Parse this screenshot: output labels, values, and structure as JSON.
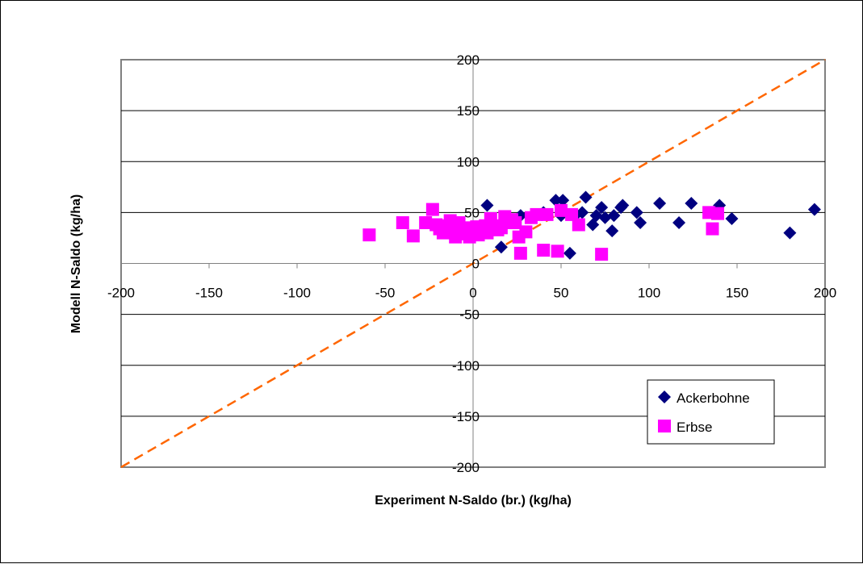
{
  "chart_data": {
    "type": "scatter",
    "xlabel": "Experiment N-Saldo (br.) (kg/ha)",
    "ylabel": "Modell N-Saldo (kg/ha)",
    "xlim": [
      -200,
      200
    ],
    "ylim": [
      -200,
      200
    ],
    "xticks": [
      -200,
      -150,
      -100,
      -50,
      0,
      50,
      100,
      150,
      200
    ],
    "yticks": [
      -200,
      -150,
      -100,
      -50,
      0,
      50,
      100,
      150,
      200
    ],
    "grid": "horizontal major gridlines",
    "legend_position": "lower-right",
    "reference_line": {
      "x": [
        -200,
        200
      ],
      "y": [
        -200,
        200
      ],
      "color": "#FF6600",
      "style": "dashed"
    },
    "series": [
      {
        "name": "Ackerbohne",
        "marker": "diamond",
        "color": "#000080",
        "points": [
          [
            8,
            57
          ],
          [
            16,
            16
          ],
          [
            27,
            47
          ],
          [
            33,
            45
          ],
          [
            40,
            50
          ],
          [
            47,
            62
          ],
          [
            50,
            47
          ],
          [
            51,
            62
          ],
          [
            55,
            10
          ],
          [
            58,
            47
          ],
          [
            62,
            50
          ],
          [
            64,
            65
          ],
          [
            68,
            38
          ],
          [
            70,
            47
          ],
          [
            73,
            55
          ],
          [
            75,
            45
          ],
          [
            79,
            32
          ],
          [
            80,
            47
          ],
          [
            84,
            55
          ],
          [
            85,
            57
          ],
          [
            93,
            50
          ],
          [
            95,
            40
          ],
          [
            106,
            59
          ],
          [
            117,
            40
          ],
          [
            124,
            59
          ],
          [
            140,
            57
          ],
          [
            147,
            44
          ],
          [
            180,
            30
          ],
          [
            194,
            53
          ]
        ]
      },
      {
        "name": "Erbse",
        "marker": "square",
        "color": "#FF00FF",
        "points": [
          [
            -59,
            28
          ],
          [
            -40,
            40
          ],
          [
            -34,
            27
          ],
          [
            -27,
            40
          ],
          [
            -23,
            53
          ],
          [
            -21,
            38
          ],
          [
            -19,
            34
          ],
          [
            -17,
            30
          ],
          [
            -15,
            37
          ],
          [
            -13,
            42
          ],
          [
            -12,
            33
          ],
          [
            -10,
            26
          ],
          [
            -8,
            40
          ],
          [
            -6,
            29
          ],
          [
            -4,
            35
          ],
          [
            -2,
            26
          ],
          [
            0,
            31
          ],
          [
            2,
            36
          ],
          [
            3,
            28
          ],
          [
            5,
            33
          ],
          [
            7,
            37
          ],
          [
            8,
            30
          ],
          [
            10,
            44
          ],
          [
            12,
            37
          ],
          [
            14,
            33
          ],
          [
            16,
            35
          ],
          [
            18,
            46
          ],
          [
            20,
            40
          ],
          [
            22,
            43
          ],
          [
            24,
            40
          ],
          [
            26,
            26
          ],
          [
            27,
            10
          ],
          [
            30,
            31
          ],
          [
            33,
            45
          ],
          [
            36,
            48
          ],
          [
            40,
            13
          ],
          [
            42,
            48
          ],
          [
            48,
            12
          ],
          [
            50,
            52
          ],
          [
            56,
            48
          ],
          [
            60,
            38
          ],
          [
            73,
            9
          ],
          [
            134,
            50
          ],
          [
            136,
            34
          ],
          [
            139,
            49
          ]
        ]
      }
    ]
  }
}
